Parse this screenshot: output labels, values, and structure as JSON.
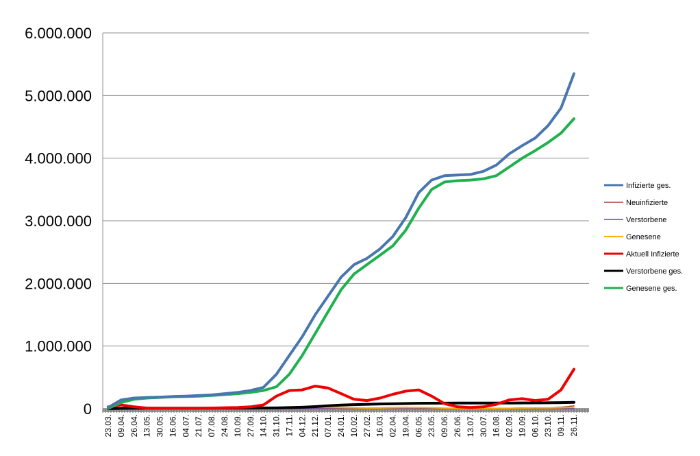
{
  "chart_data": {
    "type": "line",
    "title": "",
    "xlabel": "",
    "ylabel": "",
    "ylim": [
      0,
      6000000
    ],
    "yticks": [
      {
        "value": 0,
        "label": "0"
      },
      {
        "value": 1000000,
        "label": "1.000.000"
      },
      {
        "value": 2000000,
        "label": "2.000.000"
      },
      {
        "value": 3000000,
        "label": "3.000.000"
      },
      {
        "value": 4000000,
        "label": "4.000.000"
      },
      {
        "value": 5000000,
        "label": "5.000.000"
      },
      {
        "value": 6000000,
        "label": "6.000.000"
      }
    ],
    "grid": true,
    "legend_position": "right",
    "x": [
      "23.03.",
      "09.04.",
      "26.04.",
      "13.05.",
      "30.05.",
      "16.06.",
      "04.07.",
      "21.07.",
      "07.08.",
      "24.08.",
      "10.09.",
      "27.09.",
      "14.10.",
      "31.10.",
      "17.11.",
      "04.12.",
      "21.12.",
      "07.01.",
      "24.01.",
      "10.02.",
      "27.02.",
      "16.03.",
      "02.04.",
      "19.04.",
      "06.05.",
      "23.05.",
      "09.06.",
      "26.06.",
      "13.07.",
      "30.07.",
      "16.08.",
      "02.09.",
      "19.09.",
      "06.10.",
      "23.10.",
      "09.11.",
      "26.11."
    ],
    "series": [
      {
        "name": "Infizierte ges.",
        "color": "#4a76b0",
        "width": 4,
        "values": [
          20000,
          140000,
          170000,
          180000,
          185000,
          195000,
          200000,
          210000,
          220000,
          240000,
          260000,
          290000,
          340000,
          550000,
          850000,
          1150000,
          1500000,
          1800000,
          2100000,
          2300000,
          2400000,
          2550000,
          2750000,
          3050000,
          3450000,
          3650000,
          3720000,
          3730000,
          3740000,
          3790000,
          3890000,
          4070000,
          4200000,
          4320000,
          4520000,
          4800000,
          5350000
        ]
      },
      {
        "name": "Neuinfizierte",
        "color": "#b03838",
        "width": 1.5,
        "values": [
          5000,
          5000,
          3000,
          1000,
          1000,
          500,
          500,
          500,
          1000,
          1000,
          1500,
          2000,
          4000,
          15000,
          20000,
          25000,
          22000,
          18000,
          12000,
          9000,
          8000,
          14000,
          20000,
          22000,
          15000,
          8000,
          3000,
          1000,
          1000,
          2000,
          5000,
          8000,
          12000,
          10000,
          12000,
          25000,
          45000
        ]
      },
      {
        "name": "Verstorbene",
        "color": "#7b3fa0",
        "width": 1.5,
        "values": [
          300,
          300,
          200,
          100,
          50,
          30,
          20,
          20,
          20,
          20,
          30,
          40,
          100,
          300,
          500,
          700,
          900,
          800,
          600,
          400,
          300,
          250,
          300,
          300,
          200,
          100,
          50,
          30,
          30,
          50,
          80,
          100,
          130,
          120,
          150,
          250,
          400
        ]
      },
      {
        "name": "Genesene",
        "color": "#f5b000",
        "width": 2,
        "values": [
          0,
          3000,
          4000,
          3000,
          2000,
          1000,
          1000,
          1000,
          1000,
          1000,
          1500,
          1500,
          2000,
          8000,
          15000,
          20000,
          22000,
          20000,
          17000,
          13000,
          10000,
          11000,
          15000,
          18000,
          20000,
          15000,
          8000,
          3000,
          1500,
          2000,
          3000,
          6000,
          10000,
          12000,
          12000,
          15000,
          25000
        ]
      },
      {
        "name": "Aktuell Infizierte",
        "color": "#ee0000",
        "width": 4,
        "values": [
          30000,
          60000,
          30000,
          10000,
          5000,
          5000,
          5000,
          5000,
          10000,
          15000,
          20000,
          30000,
          60000,
          200000,
          290000,
          300000,
          360000,
          330000,
          240000,
          150000,
          130000,
          170000,
          230000,
          280000,
          300000,
          200000,
          80000,
          30000,
          20000,
          30000,
          70000,
          140000,
          160000,
          130000,
          150000,
          300000,
          630000
        ]
      },
      {
        "name": "Verstorbene ges.",
        "color": "#000000",
        "width": 4,
        "values": [
          500,
          5000,
          7000,
          8000,
          8500,
          9000,
          9000,
          9200,
          9300,
          9400,
          9500,
          9800,
          10500,
          12000,
          17000,
          23000,
          33000,
          47000,
          58000,
          65000,
          70000,
          75000,
          78000,
          82000,
          86000,
          88000,
          89000,
          90000,
          90000,
          90000,
          90500,
          91000,
          92000,
          93000,
          94000,
          97000,
          102000
        ]
      },
      {
        "name": "Genesene ges.",
        "color": "#1fb14e",
        "width": 4,
        "values": [
          5000,
          100000,
          150000,
          170000,
          180000,
          190000,
          195000,
          200000,
          210000,
          225000,
          240000,
          260000,
          290000,
          350000,
          550000,
          850000,
          1200000,
          1550000,
          1900000,
          2150000,
          2300000,
          2450000,
          2600000,
          2850000,
          3200000,
          3500000,
          3620000,
          3640000,
          3650000,
          3670000,
          3720000,
          3860000,
          4000000,
          4120000,
          4250000,
          4400000,
          4630000
        ]
      }
    ]
  }
}
